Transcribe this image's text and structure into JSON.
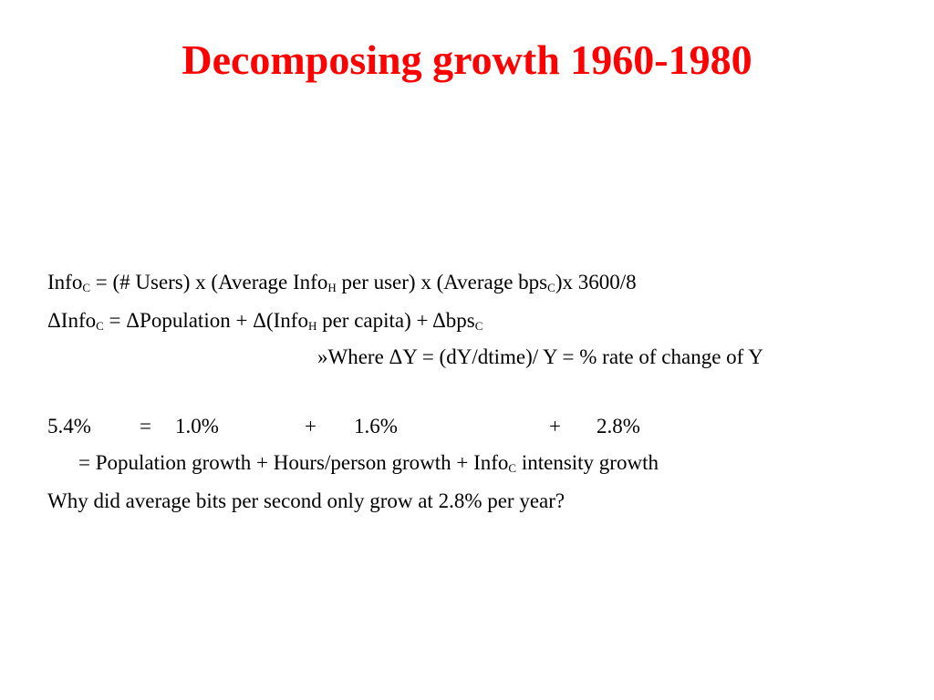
{
  "slide": {
    "title": "Decomposing growth 1960-1980"
  },
  "equation1": {
    "prefix": "Info",
    "sub1": "C",
    "part2": " = (# Users) x (Average Info",
    "sub2": "H",
    "part3": " per user) x (Average bps",
    "sub3": "C",
    "part4": ")x 3600/8"
  },
  "equation2": {
    "prefix": "ΔInfo",
    "sub1": "C",
    "part2": " = ΔPopulation +  Δ(Info",
    "sub2": "H",
    "part3": " per capita) + Δbps",
    "sub3": "C"
  },
  "where_note": "»Where  ΔY = (dY/dtime)/ Y  = % rate of change of Y",
  "values_row": {
    "total": "5.4%",
    "equals": "=",
    "population": "1.0%",
    "plus1": "+",
    "hours": "1.6%",
    "plus2": "+",
    "intensity": "2.8%"
  },
  "labels_row": {
    "part1": "= Population growth + Hours/person growth  + Info",
    "sub1": "C",
    "part2": " intensity growth"
  },
  "question": "Why did average bits per second only grow at 2.8% per year?"
}
